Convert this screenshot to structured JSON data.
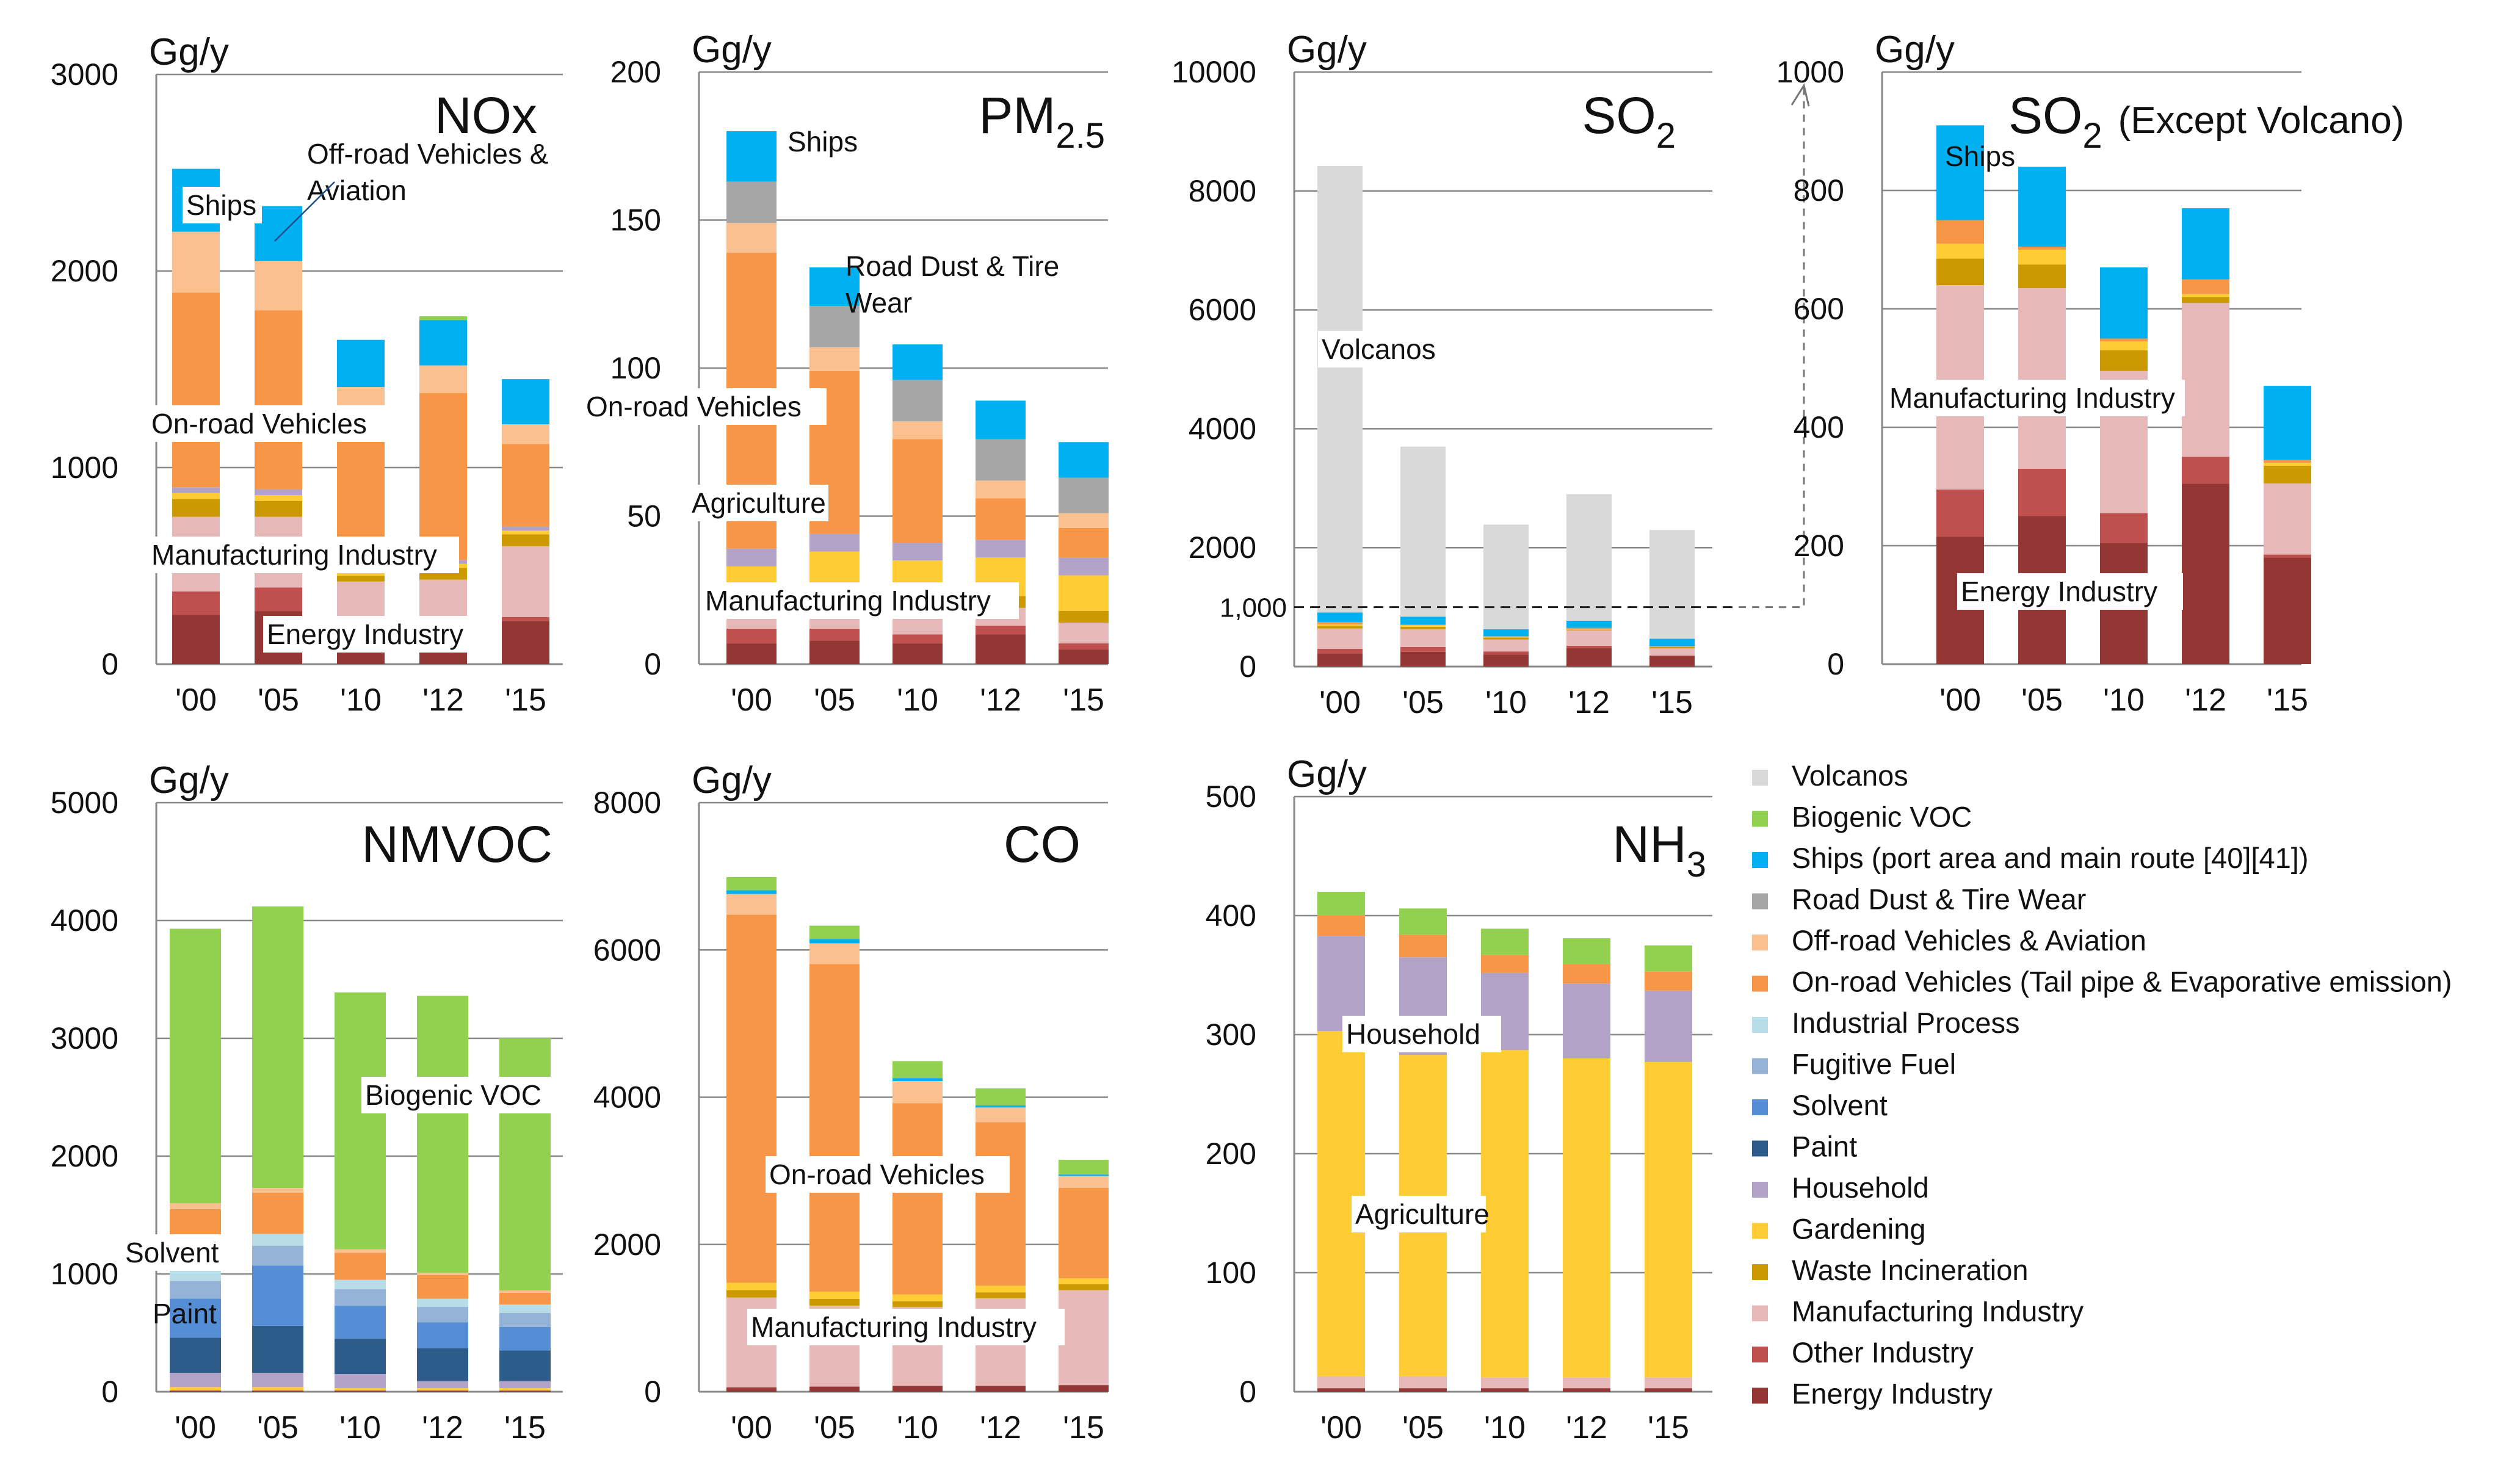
{
  "figure": {
    "legend": [
      {
        "key": "Volcanos",
        "label": "Volcanos",
        "color": "#D9D9D9"
      },
      {
        "key": "Biogenic",
        "label": "Biogenic VOC",
        "color": "#92D050"
      },
      {
        "key": "Ships",
        "label": "Ships (port area and main route [40][41])",
        "color": "#00B0F0"
      },
      {
        "key": "RoadDust",
        "label": "Road Dust & Tire Wear",
        "color": "#A6A6A6"
      },
      {
        "key": "OffRoad",
        "label": "Off-road Vehicles & Aviation",
        "color": "#FAC090"
      },
      {
        "key": "OnRoad",
        "label": "On-road Vehicles (Tail pipe & Evaporative emission)",
        "color": "#F79646"
      },
      {
        "key": "IndProc",
        "label": "Industrial Process",
        "color": "#B7DEE8"
      },
      {
        "key": "Fugitive",
        "label": "Fugitive Fuel",
        "color": "#95B3D7"
      },
      {
        "key": "Solvent",
        "label": "Solvent",
        "color": "#558ED5"
      },
      {
        "key": "Paint",
        "label": "Paint",
        "color": "#2E5C8A"
      },
      {
        "key": "Household",
        "label": "Household",
        "color": "#B3A2C7"
      },
      {
        "key": "Gardening",
        "label": "Gardening",
        "color": "#FFCC33"
      },
      {
        "key": "Waste",
        "label": "Waste Incineration",
        "color": "#CC9900"
      },
      {
        "key": "Manuf",
        "label": "Manufacturing Industry",
        "color": "#E6B9B8"
      },
      {
        "key": "OtherInd",
        "label": "Other Industry",
        "color": "#C0504D"
      },
      {
        "key": "Energy",
        "label": "Energy Industry",
        "color": "#943634"
      }
    ]
  },
  "chart_data": [
    {
      "type": "bar",
      "id": "nox",
      "title": "NOx",
      "unit": "Gg/y",
      "categories": [
        "'00",
        "'05",
        "'10",
        "'12",
        "'15"
      ],
      "ylim": [
        0,
        3000
      ],
      "yticks": [
        "0",
        "1000",
        "2000",
        "3000"
      ],
      "series": [
        {
          "key": "Energy",
          "values": [
            250,
            270,
            70,
            60,
            220
          ]
        },
        {
          "key": "OtherInd",
          "values": [
            120,
            120,
            50,
            70,
            20
          ]
        },
        {
          "key": "Manuf",
          "values": [
            380,
            360,
            300,
            300,
            360
          ]
        },
        {
          "key": "Waste",
          "values": [
            90,
            80,
            30,
            60,
            60
          ]
        },
        {
          "key": "Gardening",
          "values": [
            30,
            30,
            20,
            20,
            20
          ]
        },
        {
          "key": "Household",
          "values": [
            30,
            30,
            20,
            20,
            20
          ]
        },
        {
          "key": "OnRoad",
          "values": [
            990,
            910,
            720,
            850,
            420
          ]
        },
        {
          "key": "OffRoad",
          "values": [
            310,
            250,
            200,
            140,
            100
          ]
        },
        {
          "key": "Ships",
          "values": [
            320,
            280,
            240,
            230,
            230
          ]
        },
        {
          "key": "Biogenic",
          "values": [
            0,
            0,
            0,
            20,
            0
          ]
        }
      ],
      "annotations": [
        "Ships",
        "Off-road Vehicles & Aviation",
        "On-road Vehicles",
        "Manufacturing Industry",
        "Energy Industry"
      ]
    },
    {
      "type": "bar",
      "id": "pm25",
      "title": "PM",
      "title_sub": "2.5",
      "unit": "Gg/y",
      "categories": [
        "'00",
        "'05",
        "'10",
        "'12",
        "'15"
      ],
      "ylim": [
        0,
        200
      ],
      "yticks": [
        "0",
        "50",
        "100",
        "150",
        "200"
      ],
      "series": [
        {
          "key": "Energy",
          "values": [
            7,
            8,
            7,
            10,
            5
          ]
        },
        {
          "key": "OtherInd",
          "values": [
            5,
            4,
            3,
            3,
            2
          ]
        },
        {
          "key": "Manuf",
          "values": [
            8,
            7,
            6,
            6,
            7
          ]
        },
        {
          "key": "Waste",
          "values": [
            6,
            5,
            5,
            4,
            4
          ]
        },
        {
          "key": "Gardening",
          "values": [
            7,
            14,
            14,
            13,
            12
          ]
        },
        {
          "key": "Household",
          "values": [
            6,
            6,
            6,
            6,
            6
          ]
        },
        {
          "key": "OnRoad",
          "values": [
            100,
            55,
            35,
            14,
            10
          ]
        },
        {
          "key": "OffRoad",
          "values": [
            10,
            8,
            6,
            6,
            5
          ]
        },
        {
          "key": "RoadDust",
          "values": [
            14,
            14,
            14,
            14,
            12
          ]
        },
        {
          "key": "Ships",
          "values": [
            17,
            13,
            12,
            13,
            12
          ]
        }
      ],
      "annotations": [
        "Ships",
        "Road Dust & Tire Wear",
        "On-road Vehicles",
        "Agriculture",
        "Manufacturing Industry"
      ]
    },
    {
      "type": "bar",
      "id": "so2",
      "title": "SO",
      "title_sub": "2",
      "unit": "Gg/y",
      "categories": [
        "'00",
        "'05",
        "'10",
        "'12",
        "'15"
      ],
      "ylim": [
        0,
        10000
      ],
      "yticks": [
        "0",
        "2000",
        "4000",
        "6000",
        "8000",
        "10000"
      ],
      "reference_line": {
        "value": 1000,
        "label": "1,000"
      },
      "series": [
        {
          "key": "Energy",
          "values": [
            220,
            250,
            200,
            310,
            180
          ]
        },
        {
          "key": "OtherInd",
          "values": [
            80,
            80,
            55,
            40,
            5
          ]
        },
        {
          "key": "Manuf",
          "values": [
            340,
            300,
            200,
            260,
            120
          ]
        },
        {
          "key": "Waste",
          "values": [
            45,
            40,
            35,
            10,
            30
          ]
        },
        {
          "key": "Gardening",
          "values": [
            25,
            25,
            15,
            5,
            5
          ]
        },
        {
          "key": "OnRoad",
          "values": [
            40,
            10,
            3,
            25,
            3
          ]
        },
        {
          "key": "Ships",
          "values": [
            160,
            135,
            120,
            120,
            125
          ]
        },
        {
          "key": "Volcanos",
          "values": [
            7510,
            2860,
            1760,
            2130,
            1830
          ]
        }
      ],
      "annotations": [
        "Volcanos"
      ]
    },
    {
      "type": "bar",
      "id": "so2ex",
      "title": "SO",
      "title_sub": "2",
      "title_suffix": "(Except Volcano)",
      "unit": "Gg/y",
      "categories": [
        "'00",
        "'05",
        "'10",
        "'12",
        "'15"
      ],
      "ylim": [
        0,
        1000
      ],
      "yticks": [
        "0",
        "200",
        "400",
        "600",
        "800",
        "1000"
      ],
      "series": [
        {
          "key": "Energy",
          "values": [
            215,
            250,
            205,
            305,
            180
          ]
        },
        {
          "key": "OtherInd",
          "values": [
            80,
            80,
            50,
            45,
            5
          ]
        },
        {
          "key": "Manuf",
          "values": [
            345,
            305,
            240,
            260,
            120
          ]
        },
        {
          "key": "Waste",
          "values": [
            45,
            40,
            35,
            10,
            30
          ]
        },
        {
          "key": "Gardening",
          "values": [
            25,
            25,
            15,
            5,
            5
          ]
        },
        {
          "key": "OnRoad",
          "values": [
            40,
            5,
            5,
            25,
            5
          ]
        },
        {
          "key": "Ships",
          "values": [
            160,
            135,
            120,
            120,
            125
          ]
        }
      ],
      "annotations": [
        "Ships",
        "Manufacturing Industry",
        "Energy Industry"
      ]
    },
    {
      "type": "bar",
      "id": "nmvoc",
      "title": "NMVOC",
      "unit": "Gg/y",
      "categories": [
        "'00",
        "'05",
        "'10",
        "'12",
        "'15"
      ],
      "ylim": [
        0,
        5000
      ],
      "yticks": [
        "0",
        "1000",
        "2000",
        "3000",
        "4000",
        "5000"
      ],
      "series": [
        {
          "key": "Energy",
          "values": [
            10,
            10,
            10,
            10,
            10
          ]
        },
        {
          "key": "Gardening",
          "values": [
            30,
            30,
            20,
            20,
            20
          ]
        },
        {
          "key": "Household",
          "values": [
            120,
            120,
            120,
            60,
            60
          ]
        },
        {
          "key": "Paint",
          "values": [
            300,
            400,
            300,
            280,
            260
          ]
        },
        {
          "key": "Solvent",
          "values": [
            330,
            510,
            280,
            220,
            200
          ]
        },
        {
          "key": "Fugitive",
          "values": [
            150,
            170,
            140,
            130,
            120
          ]
        },
        {
          "key": "IndProc",
          "values": [
            160,
            100,
            80,
            70,
            70
          ]
        },
        {
          "key": "OnRoad",
          "values": [
            450,
            350,
            230,
            200,
            100
          ]
        },
        {
          "key": "OffRoad",
          "values": [
            50,
            40,
            30,
            20,
            20
          ]
        },
        {
          "key": "Biogenic",
          "values": [
            2330,
            2390,
            2180,
            2350,
            2140
          ]
        }
      ],
      "annotations": [
        "Biogenic VOC",
        "Solvent",
        "Paint"
      ]
    },
    {
      "type": "bar",
      "id": "co",
      "title": "CO",
      "unit": "Gg/y",
      "categories": [
        "'00",
        "'05",
        "'10",
        "'12",
        "'15"
      ],
      "ylim": [
        0,
        8000
      ],
      "yticks": [
        "0",
        "2000",
        "4000",
        "6000",
        "8000"
      ],
      "series": [
        {
          "key": "Energy",
          "values": [
            60,
            70,
            80,
            80,
            90
          ]
        },
        {
          "key": "Manuf",
          "values": [
            1220,
            1100,
            1070,
            1190,
            1290
          ]
        },
        {
          "key": "Waste",
          "values": [
            100,
            90,
            80,
            80,
            80
          ]
        },
        {
          "key": "Gardening",
          "values": [
            100,
            100,
            90,
            90,
            80
          ]
        },
        {
          "key": "OnRoad",
          "values": [
            5000,
            4450,
            2600,
            2220,
            1230
          ]
        },
        {
          "key": "OffRoad",
          "values": [
            280,
            280,
            300,
            200,
            160
          ]
        },
        {
          "key": "Ships",
          "values": [
            50,
            60,
            40,
            30,
            20
          ]
        },
        {
          "key": "Biogenic",
          "values": [
            180,
            180,
            230,
            230,
            200
          ]
        }
      ],
      "annotations": [
        "On-road Vehicles",
        "Manufacturing Industry"
      ]
    },
    {
      "type": "bar",
      "id": "nh3",
      "title": "NH",
      "title_sub": "3",
      "unit": "Gg/y",
      "categories": [
        "'00",
        "'05",
        "'10",
        "'12",
        "'15"
      ],
      "ylim": [
        0,
        500
      ],
      "yticks": [
        "0",
        "100",
        "200",
        "300",
        "400",
        "500"
      ],
      "series": [
        {
          "key": "Energy",
          "values": [
            3,
            3,
            3,
            3,
            3
          ]
        },
        {
          "key": "Manuf",
          "values": [
            10,
            10,
            9,
            9,
            9
          ]
        },
        {
          "key": "Gardening",
          "values": [
            290,
            270,
            275,
            268,
            265
          ]
        },
        {
          "key": "Household",
          "values": [
            80,
            82,
            65,
            63,
            60
          ]
        },
        {
          "key": "OnRoad",
          "values": [
            17,
            19,
            15,
            16,
            16
          ]
        },
        {
          "key": "Biogenic",
          "values": [
            20,
            22,
            22,
            22,
            22
          ]
        }
      ],
      "annotations": [
        "Household",
        "Agriculture"
      ]
    }
  ]
}
